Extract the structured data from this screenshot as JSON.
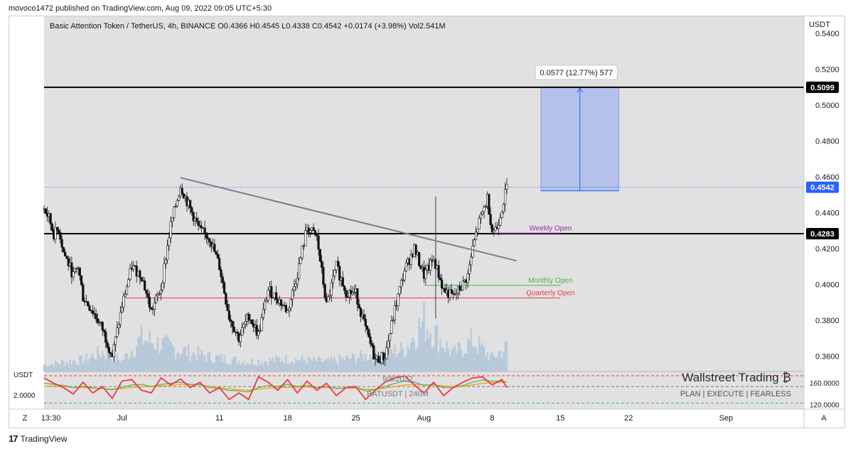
{
  "publisher_line": "movoco1472 published on TradingView.com, Aug 09, 2022 09:05 UTC+5:30",
  "footer_brand": "TradingView",
  "colors": {
    "plot_bg": "#e1e1e1",
    "candle": "#111111",
    "volume": "#b7c9d9",
    "trendline": "#7b7d8a",
    "resistance": "#000000",
    "price_line": "#2962ff",
    "weekly_open": "#9c27b0",
    "monthly_open": "#4caf50",
    "quarterly_open": "#f23645",
    "measure_box": "#b3c1eb",
    "rsi_red": "#f23645",
    "rsi_green": "#4caf50",
    "rsi_orange": "#ff9800"
  },
  "chart_data": {
    "type": "candlestick",
    "title": "Basic Attention Token / TetherUS, 4h, BINANCE",
    "ohlc_label": "O0.4366 H0.4545 L0.4338 C0.4542 +0.0174 (+3.98%) Vol2.541M",
    "y_axis_unit": "USDT",
    "y_ticks": [
      0.54,
      0.52,
      0.5,
      0.48,
      0.46,
      0.44,
      0.42,
      0.4,
      0.38,
      0.36
    ],
    "y_tick_labels": [
      "0.5400",
      "0.5200",
      "0.5000",
      "0.4800",
      "0.4600",
      "0.4400",
      "0.4200",
      "0.4000",
      "0.3800",
      "0.3600"
    ],
    "ylim": [
      0.3515,
      0.5455
    ],
    "x_tick_labels": [
      "13:30",
      "Jul",
      "11",
      "18",
      "25",
      "Aug",
      "8",
      "15",
      "22",
      "Sep"
    ],
    "x_tick_days": [
      -7.3,
      0,
      10,
      17,
      24,
      31,
      38,
      45,
      52,
      62
    ],
    "xlim": [
      -8.0,
      70.0
    ],
    "close_series": {
      "x": [
        -8,
        -7.5,
        -7,
        -6.5,
        -6,
        -5,
        -4.5,
        -4,
        -3,
        -2,
        -1,
        0,
        1,
        2,
        3,
        4,
        5,
        6,
        7,
        8,
        9,
        10,
        11,
        12,
        13,
        14,
        15,
        16,
        17,
        18,
        19,
        20,
        21,
        22,
        23,
        24,
        25,
        26,
        27,
        28,
        29,
        30,
        31,
        32,
        33,
        34,
        35,
        35.5,
        36,
        36.5,
        37,
        37.5,
        38,
        38.5,
        39,
        39.5
      ],
      "y": [
        0.442,
        0.437,
        0.428,
        0.431,
        0.418,
        0.405,
        0.41,
        0.393,
        0.385,
        0.375,
        0.36,
        0.388,
        0.41,
        0.405,
        0.385,
        0.398,
        0.433,
        0.455,
        0.442,
        0.43,
        0.426,
        0.41,
        0.382,
        0.37,
        0.383,
        0.372,
        0.397,
        0.392,
        0.385,
        0.406,
        0.432,
        0.426,
        0.388,
        0.41,
        0.396,
        0.395,
        0.375,
        0.358,
        0.36,
        0.386,
        0.408,
        0.42,
        0.405,
        0.414,
        0.397,
        0.393,
        0.4,
        0.405,
        0.42,
        0.432,
        0.44,
        0.448,
        0.43,
        0.432,
        0.443,
        0.4542
      ]
    },
    "volume_series": {
      "x": [
        -8,
        -4,
        -2,
        0,
        2,
        6,
        9,
        13,
        17,
        21,
        25,
        29,
        31,
        34,
        36,
        38,
        39.5
      ],
      "y": [
        0.7,
        1.2,
        2.0,
        1.1,
        3.4,
        2.2,
        1.5,
        1.0,
        1.3,
        1.0,
        1.6,
        2.3,
        5.2,
        1.8,
        3.2,
        1.4,
        2.5
      ]
    },
    "levels": [
      {
        "label": "0.5099",
        "value": 0.5099,
        "style": "resistance"
      },
      {
        "label": "0.4283",
        "value": 0.4283,
        "style": "resistance"
      },
      {
        "label": "0.4542",
        "value": 0.4542,
        "style": "price"
      }
    ],
    "open_levels": [
      {
        "label": "Weekly Open",
        "value": 0.4286,
        "from_day": 38.0,
        "to_day": 45.0,
        "color_key": "weekly_open"
      },
      {
        "label": "Monthly Open",
        "value": 0.3995,
        "from_day": 31.0,
        "to_day": 45.0,
        "color_key": "monthly_open"
      },
      {
        "label": "Quarterly Open",
        "value": 0.3925,
        "from_day": 0.0,
        "to_day": 45.0,
        "color_key": "quarterly_open"
      }
    ],
    "trendline": {
      "from": [
        6.0,
        0.4595
      ],
      "to": [
        40.5,
        0.4132
      ]
    },
    "measure": {
      "label": "0.0577 (12.77%) 577",
      "from_day": 43.0,
      "to_day": 51.0,
      "low": 0.4522,
      "high": 0.5099
    },
    "rsi": {
      "axis_label": "USDT",
      "left_value_label": "2.0000",
      "tick_labels": [
        "160.0000",
        "120.0000"
      ],
      "ylim": [
        110,
        180
      ],
      "upper_band": 172,
      "mid_band": 152,
      "lower_band": 121,
      "x": [
        -8,
        -7,
        -6,
        -5,
        -4,
        -3,
        -2,
        -1,
        0,
        1,
        2,
        3,
        4,
        5,
        6,
        7,
        8,
        9,
        10,
        11,
        12,
        13,
        14,
        15,
        16,
        17,
        18,
        19,
        20,
        21,
        22,
        23,
        24,
        25,
        26,
        27,
        28,
        29,
        30,
        31,
        32,
        33,
        34,
        35,
        36,
        37,
        38,
        39,
        39.5
      ],
      "red": [
        168,
        158,
        150,
        138,
        160,
        140,
        152,
        130,
        162,
        165,
        145,
        140,
        168,
        155,
        166,
        150,
        160,
        140,
        150,
        128,
        140,
        128,
        170,
        160,
        145,
        165,
        140,
        162,
        145,
        158,
        135,
        150,
        152,
        128,
        145,
        160,
        168,
        172,
        155,
        140,
        160,
        135,
        150,
        160,
        168,
        170,
        155,
        165,
        150
      ],
      "green": [
        158,
        156,
        154,
        150,
        152,
        150,
        148,
        146,
        150,
        155,
        156,
        152,
        156,
        158,
        160,
        156,
        156,
        150,
        148,
        145,
        144,
        142,
        150,
        154,
        152,
        156,
        152,
        154,
        150,
        152,
        148,
        150,
        150,
        144,
        146,
        152,
        158,
        162,
        160,
        154,
        156,
        150,
        150,
        154,
        160,
        164,
        162,
        162,
        160
      ],
      "orange": [
        152,
        153,
        152,
        150,
        150,
        149,
        148,
        147,
        148,
        150,
        152,
        152,
        153,
        154,
        156,
        155,
        155,
        152,
        150,
        148,
        146,
        145,
        147,
        149,
        150,
        151,
        151,
        151,
        150,
        150,
        149,
        149,
        149,
        147,
        147,
        149,
        152,
        155,
        156,
        155,
        155,
        153,
        152,
        152,
        155,
        158,
        159,
        160,
        160
      ]
    },
    "watermark": {
      "brand": "Wallstreet Trading ₿",
      "tagline": "PLAN  |  EXECUTE  |  FEARLESS",
      "date": "9/8/2022",
      "symbol": "BATUSDT | 240M"
    },
    "corner_labels": {
      "left": "Z",
      "right": "A"
    }
  }
}
